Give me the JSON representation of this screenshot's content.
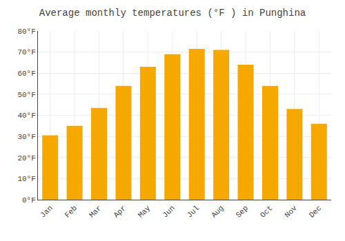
{
  "chart_data": {
    "type": "bar",
    "title": "Average monthly temperatures (°F ) in Punghina",
    "categories": [
      "Jan",
      "Feb",
      "Mar",
      "Apr",
      "May",
      "Jun",
      "Jul",
      "Aug",
      "Sep",
      "Oct",
      "Nov",
      "Dec"
    ],
    "values": [
      30.5,
      35.0,
      43.5,
      54.0,
      63.0,
      69.0,
      71.5,
      71.0,
      64.0,
      54.0,
      43.0,
      36.0
    ],
    "color": "#F5A800",
    "ylim": [
      0,
      80
    ],
    "yticks": [
      {
        "value": 0,
        "label": "0°F"
      },
      {
        "value": 10,
        "label": "10°F"
      },
      {
        "value": 20,
        "label": "20°F"
      },
      {
        "value": 30,
        "label": "30°F"
      },
      {
        "value": 40,
        "label": "40°F"
      },
      {
        "value": 50,
        "label": "50°F"
      },
      {
        "value": 60,
        "label": "60°F"
      },
      {
        "value": 70,
        "label": "70°F"
      },
      {
        "value": 80,
        "label": "80°F"
      }
    ],
    "grid": true
  }
}
